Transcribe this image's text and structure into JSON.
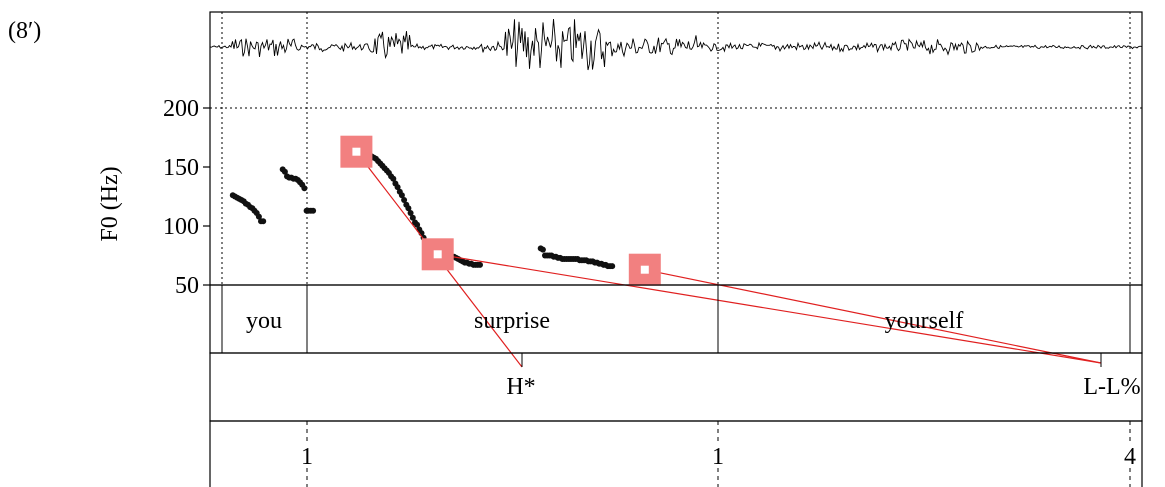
{
  "example_number": "(8′)",
  "y_axis_label": "F0 (Hz)",
  "y_ticks": [
    "200",
    "150",
    "100",
    "50"
  ],
  "words": [
    "you",
    "surprise",
    "yourself"
  ],
  "tones": [
    "H*",
    "L-L%"
  ],
  "break_indices": [
    "1",
    "1",
    "4"
  ],
  "colors": {
    "pitch_dots": "#111111",
    "target_box": "#f28080",
    "connector_line": "#e02020",
    "frame": "#000000"
  },
  "chart_data": {
    "type": "scatter",
    "title": "",
    "xlabel": "",
    "ylabel": "F0 (Hz)",
    "ylim": [
      50,
      200
    ],
    "x_unit": "time (s)",
    "grid": "dotted horizontal at 200 Hz; dotted vertical at boundaries",
    "segments": [
      {
        "name": "you",
        "x": [
          0.1,
          0.12,
          0.14,
          0.16,
          0.18,
          0.2,
          0.22,
          0.24,
          0.26,
          0.28,
          0.3,
          0.32,
          0.34,
          0.36,
          0.38
        ],
        "y": [
          126,
          125,
          124,
          123,
          122,
          121,
          119,
          118,
          116,
          115,
          113,
          111,
          108,
          104,
          104
        ]
      },
      {
        "name": "frag1",
        "x": [
          0.56,
          0.58,
          0.6,
          0.62,
          0.64,
          0.66,
          0.68,
          0.7,
          0.72,
          0.74,
          0.76
        ],
        "y": [
          148,
          146,
          142,
          141,
          141,
          140,
          140,
          139,
          137,
          135,
          132
        ]
      },
      {
        "name": "frag2",
        "x": [
          0.78,
          0.8,
          0.82,
          0.84
        ],
        "y": [
          113,
          113,
          113,
          113
        ]
      },
      {
        "name": "surprise",
        "x": [
          1.14,
          1.16,
          1.18,
          1.2,
          1.22,
          1.24,
          1.26,
          1.28,
          1.3,
          1.32,
          1.34,
          1.36,
          1.38,
          1.4,
          1.42,
          1.44,
          1.46,
          1.48,
          1.5,
          1.52,
          1.54,
          1.56,
          1.58,
          1.6,
          1.62,
          1.64,
          1.66,
          1.68,
          1.7,
          1.72,
          1.74,
          1.76,
          1.78,
          1.8,
          1.82,
          1.84,
          1.86,
          1.88,
          1.9,
          1.92,
          1.94,
          1.96,
          1.98
        ],
        "y": [
          163,
          163,
          163,
          163,
          163,
          163,
          163,
          163,
          162,
          162,
          161,
          160,
          159,
          158,
          157,
          155,
          153,
          151,
          149,
          147,
          145,
          142,
          140,
          136,
          133,
          129,
          126,
          122,
          118,
          115,
          111,
          107,
          103,
          101,
          97,
          94,
          90,
          86,
          82,
          80,
          78,
          76,
          75
        ]
      },
      {
        "name": "yourself_a",
        "x": [
          2.0,
          2.02,
          2.04,
          2.06,
          2.08,
          2.1,
          2.12,
          2.14,
          2.16,
          2.18,
          2.2,
          2.22,
          2.24,
          2.26,
          2.28,
          2.3,
          2.32,
          2.34,
          2.36,
          2.38
        ],
        "y": [
          76,
          76,
          76,
          75,
          75,
          75,
          74,
          74,
          73,
          72,
          71,
          70,
          69,
          69,
          68,
          68,
          67,
          67,
          67,
          67
        ]
      },
      {
        "name": "yourself_b",
        "x": [
          2.94,
          2.96,
          2.98,
          3.0,
          3.02,
          3.04,
          3.06,
          3.08,
          3.1,
          3.12,
          3.14,
          3.16,
          3.18,
          3.2,
          3.22,
          3.24,
          3.26,
          3.28,
          3.3,
          3.32,
          3.34,
          3.36,
          3.38,
          3.4,
          3.42,
          3.44,
          3.46,
          3.48,
          3.5,
          3.52,
          3.54,
          3.56,
          3.58,
          3.6
        ],
        "y": [
          81,
          80,
          75,
          75,
          75,
          75,
          74,
          74,
          73,
          73,
          72,
          72,
          72,
          72,
          72,
          72,
          72,
          72,
          71,
          71,
          71,
          71,
          70,
          70,
          70,
          69,
          69,
          68,
          68,
          67,
          67,
          66,
          66,
          66
        ]
      }
    ],
    "targets": [
      {
        "label": "H*",
        "x": 1.24,
        "y": 163
      },
      {
        "label": "L-L%",
        "x": 1.99,
        "y": 76
      },
      {
        "label": "L-L%",
        "x": 3.9,
        "y": 63
      }
    ],
    "word_boundaries": [
      0.0,
      0.21,
      0.4,
      1.23,
      2.29,
      3.97
    ],
    "break_index_times": [
      0.4,
      2.29,
      3.86
    ]
  }
}
